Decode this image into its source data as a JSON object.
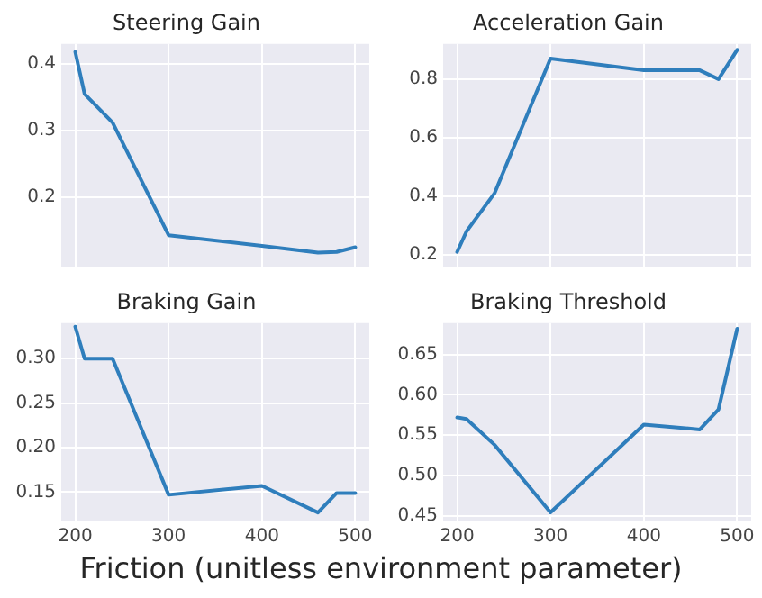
{
  "chart_data": [
    {
      "type": "line",
      "title": "Steering Gain",
      "x": [
        200,
        210,
        240,
        300,
        400,
        460,
        480,
        500
      ],
      "series": [
        {
          "color": "#2f7ebc",
          "values": [
            0.418,
            0.355,
            0.312,
            0.143,
            0.127,
            0.117,
            0.118,
            0.125
          ]
        }
      ],
      "xlim": [
        185,
        515
      ],
      "xticks": [
        200,
        300,
        400,
        500
      ],
      "ylim": [
        0.096,
        0.43
      ],
      "yticks": [
        0.2,
        0.3,
        0.4
      ],
      "grid": true,
      "tick_labels": "y"
    },
    {
      "type": "line",
      "title": "Acceleration Gain",
      "x": [
        200,
        210,
        240,
        300,
        400,
        460,
        480,
        500
      ],
      "series": [
        {
          "color": "#2f7ebc",
          "values": [
            0.21,
            0.28,
            0.41,
            0.87,
            0.83,
            0.83,
            0.8,
            0.9
          ]
        }
      ],
      "xlim": [
        185,
        515
      ],
      "xticks": [
        200,
        300,
        400,
        500
      ],
      "ylim": [
        0.16,
        0.92
      ],
      "yticks": [
        0.2,
        0.4,
        0.6,
        0.8
      ],
      "grid": true,
      "tick_labels": "y"
    },
    {
      "type": "line",
      "title": "Braking Gain",
      "xlabel": "Friction (unitless environment parameter)",
      "x": [
        200,
        210,
        240,
        300,
        400,
        460,
        480,
        500
      ],
      "series": [
        {
          "color": "#2f7ebc",
          "values": [
            0.336,
            0.3,
            0.3,
            0.147,
            0.157,
            0.127,
            0.149,
            0.149
          ]
        }
      ],
      "xlim": [
        185,
        515
      ],
      "xticks": [
        200,
        300,
        400,
        500
      ],
      "ylim": [
        0.118,
        0.34
      ],
      "yticks": [
        {
          "value": 0.15,
          "label": "0.15"
        },
        {
          "value": 0.2,
          "label": "0.20"
        },
        0.25,
        {
          "value": 0.3,
          "label": "0.30"
        }
      ],
      "grid": true
    },
    {
      "type": "line",
      "title": "Braking Threshold",
      "x": [
        200,
        210,
        240,
        300,
        400,
        460,
        480,
        500
      ],
      "series": [
        {
          "color": "#2f7ebc",
          "values": [
            0.572,
            0.57,
            0.538,
            0.454,
            0.563,
            0.557,
            0.582,
            0.682
          ]
        }
      ],
      "xlim": [
        185,
        515
      ],
      "xticks": [
        200,
        300,
        400,
        500
      ],
      "ylim": [
        0.444,
        0.689
      ],
      "yticks": [
        0.45,
        {
          "value": 0.5,
          "label": "0.50"
        },
        0.55,
        {
          "value": 0.6,
          "label": "0.60"
        },
        0.65
      ],
      "grid": true
    }
  ]
}
